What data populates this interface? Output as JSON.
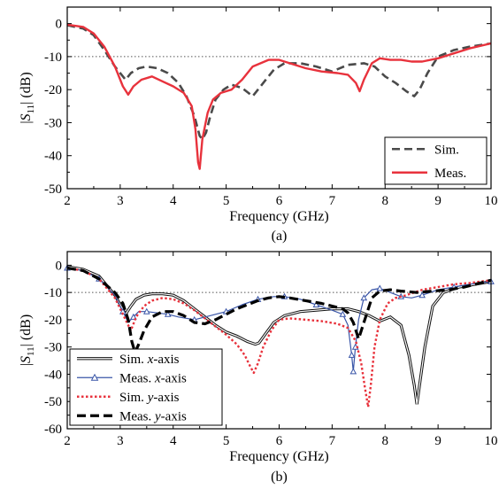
{
  "chart_data": [
    {
      "type": "line",
      "caption": "(a)",
      "xlabel": "Frequency (GHz)",
      "ylabel_parts": [
        "|",
        "S",
        "11",
        "| (dB)"
      ],
      "xlim": [
        2,
        10
      ],
      "ylim": [
        -50,
        5
      ],
      "xticks": [
        2,
        3,
        4,
        5,
        6,
        7,
        8,
        9,
        10
      ],
      "yticks": [
        0,
        -10,
        -20,
        -30,
        -40,
        -50
      ],
      "ytick_labels": [
        "0",
        "-10",
        "-20",
        "-30",
        "-40",
        "-50"
      ],
      "reference_line_y": -10,
      "legend_position": "bottom-right",
      "series": [
        {
          "name": "Sim.",
          "color": "#4a4a4a",
          "style": "dashed",
          "x": [
            2.0,
            2.3,
            2.5,
            2.7,
            2.9,
            3.1,
            3.2,
            3.35,
            3.5,
            3.7,
            3.9,
            4.1,
            4.25,
            4.4,
            4.5,
            4.55,
            4.62,
            4.7,
            4.8,
            4.95,
            5.1,
            5.3,
            5.5,
            5.7,
            5.9,
            6.1,
            6.4,
            6.7,
            7.0,
            7.3,
            7.6,
            7.8,
            8.0,
            8.2,
            8.4,
            8.55,
            8.65,
            8.8,
            9.0,
            9.3,
            9.6,
            10.0
          ],
          "y": [
            -0.5,
            -1.5,
            -3.5,
            -8,
            -13,
            -17,
            -15,
            -13.5,
            -13,
            -13.5,
            -15,
            -18,
            -22,
            -28,
            -34,
            -35,
            -33,
            -28,
            -23,
            -20,
            -18.5,
            -19.5,
            -22,
            -18,
            -14,
            -12,
            -12,
            -13,
            -14.5,
            -12.5,
            -12,
            -13,
            -16,
            -18,
            -20.5,
            -22,
            -20,
            -15,
            -10,
            -8,
            -7,
            -6
          ]
        },
        {
          "name": "Meas.",
          "color": "#e8323c",
          "style": "solid",
          "x": [
            2.0,
            2.3,
            2.5,
            2.7,
            2.9,
            3.05,
            3.15,
            3.25,
            3.4,
            3.6,
            3.8,
            4.0,
            4.2,
            4.35,
            4.42,
            4.47,
            4.5,
            4.55,
            4.65,
            4.75,
            4.9,
            5.1,
            5.3,
            5.5,
            5.8,
            6.0,
            6.2,
            6.5,
            6.8,
            7.1,
            7.3,
            7.45,
            7.52,
            7.6,
            7.75,
            7.9,
            8.1,
            8.3,
            8.5,
            8.7,
            9.0,
            9.3,
            9.6,
            10.0
          ],
          "y": [
            -0.3,
            -1,
            -3,
            -7,
            -13,
            -19,
            -21.5,
            -19,
            -17,
            -16,
            -17.5,
            -19,
            -21,
            -25,
            -32,
            -42,
            -44,
            -35,
            -27,
            -23,
            -21,
            -20,
            -17,
            -13,
            -11,
            -11,
            -12,
            -13.5,
            -14.5,
            -15,
            -15.5,
            -18,
            -20.5,
            -17,
            -12,
            -10.5,
            -11,
            -11,
            -11.5,
            -11.5,
            -10.5,
            -9,
            -7.5,
            -6
          ]
        }
      ]
    },
    {
      "type": "line",
      "caption": "(b)",
      "xlabel": "Frequency (GHz)",
      "ylabel_parts": [
        "|",
        "S",
        "11",
        "| (dB)"
      ],
      "xlim": [
        2,
        10
      ],
      "ylim": [
        -60,
        5
      ],
      "xticks": [
        2,
        3,
        4,
        5,
        6,
        7,
        8,
        9,
        10
      ],
      "yticks": [
        0,
        -10,
        -20,
        -30,
        -40,
        -50,
        -60
      ],
      "ytick_labels": [
        "0",
        "-10",
        "-20",
        "-30",
        "-40",
        "-50",
        "-60"
      ],
      "reference_line_y": -10,
      "legend_position": "bottom-left",
      "series": [
        {
          "name_parts": [
            "Sim. ",
            "x",
            "-axis"
          ],
          "color": "#111111",
          "style": "double",
          "x": [
            2.0,
            2.3,
            2.6,
            2.9,
            3.1,
            3.2,
            3.3,
            3.45,
            3.6,
            3.8,
            4.0,
            4.2,
            4.4,
            4.6,
            4.8,
            5.0,
            5.2,
            5.4,
            5.55,
            5.62,
            5.75,
            5.9,
            6.1,
            6.4,
            6.7,
            7.0,
            7.3,
            7.5,
            7.7,
            7.9,
            8.1,
            8.3,
            8.45,
            8.55,
            8.6,
            8.65,
            8.75,
            8.9,
            9.1,
            9.4,
            9.7,
            10.0
          ],
          "y": [
            -0.5,
            -1.5,
            -4,
            -11,
            -18,
            -15,
            -12.5,
            -11,
            -10.5,
            -10.5,
            -11,
            -13,
            -16,
            -19,
            -22,
            -24.5,
            -26,
            -28,
            -29,
            -28.5,
            -25,
            -21,
            -18.5,
            -17,
            -16.5,
            -16,
            -16,
            -17,
            -18.5,
            -20.5,
            -19,
            -22,
            -33,
            -44,
            -51,
            -44,
            -30,
            -15,
            -10,
            -8,
            -7,
            -6
          ]
        },
        {
          "name_parts": [
            "Meas. ",
            "x",
            "-axis"
          ],
          "color": "#3a56a8",
          "style": "triangles",
          "marker_x": [
            7.4
          ],
          "x": [
            2.0,
            2.3,
            2.6,
            2.9,
            3.05,
            3.15,
            3.25,
            3.35,
            3.5,
            3.7,
            3.9,
            4.1,
            4.4,
            4.7,
            5.0,
            5.3,
            5.6,
            5.9,
            6.1,
            6.4,
            6.7,
            7.0,
            7.2,
            7.3,
            7.37,
            7.4,
            7.44,
            7.5,
            7.6,
            7.75,
            7.9,
            8.1,
            8.3,
            8.5,
            8.7,
            9.0,
            9.3,
            9.6,
            10.0
          ],
          "y": [
            -1,
            -2,
            -5,
            -11,
            -17,
            -21,
            -19,
            -17,
            -17,
            -17.5,
            -18,
            -19,
            -20,
            -18.5,
            -17,
            -14.5,
            -12.5,
            -11.5,
            -11.5,
            -12.5,
            -14.5,
            -16.5,
            -18,
            -22,
            -33,
            -39,
            -30,
            -20,
            -12,
            -9,
            -8.5,
            -10,
            -11.5,
            -12,
            -11,
            -9,
            -8,
            -7,
            -6
          ]
        },
        {
          "name_parts": [
            "Sim. ",
            "y",
            "-axis"
          ],
          "color": "#e8323c",
          "style": "dotted",
          "x": [
            2.0,
            2.3,
            2.6,
            2.9,
            3.1,
            3.2,
            3.3,
            3.45,
            3.6,
            3.8,
            4.0,
            4.2,
            4.4,
            4.6,
            4.8,
            5.0,
            5.2,
            5.35,
            5.45,
            5.52,
            5.6,
            5.7,
            5.85,
            6.0,
            6.2,
            6.5,
            6.8,
            7.1,
            7.3,
            7.45,
            7.55,
            7.62,
            7.68,
            7.73,
            7.8,
            7.9,
            8.05,
            8.2,
            8.4,
            8.7,
            9.0,
            9.3,
            9.6,
            10.0
          ],
          "y": [
            -1,
            -2,
            -5,
            -12,
            -20,
            -24,
            -19,
            -15,
            -13,
            -12,
            -12.5,
            -14,
            -16.5,
            -19.5,
            -22.5,
            -25.5,
            -29,
            -33,
            -37,
            -39.5,
            -36,
            -30,
            -24,
            -20,
            -19.5,
            -20,
            -20.5,
            -21.5,
            -23,
            -28,
            -36,
            -45,
            -52,
            -44,
            -30,
            -20,
            -14,
            -12,
            -11,
            -9,
            -8,
            -7,
            -6.5,
            -5.5
          ]
        },
        {
          "name_parts": [
            "Meas. ",
            "y",
            "-axis"
          ],
          "color": "#000000",
          "style": "dashed-bold",
          "x": [
            2.0,
            2.3,
            2.6,
            2.9,
            3.05,
            3.15,
            3.22,
            3.28,
            3.35,
            3.45,
            3.6,
            3.8,
            4.0,
            4.2,
            4.4,
            4.6,
            4.8,
            5.0,
            5.2,
            5.4,
            5.6,
            5.8,
            6.0,
            6.2,
            6.5,
            6.8,
            7.0,
            7.2,
            7.3,
            7.4,
            7.5,
            7.6,
            7.75,
            7.9,
            8.1,
            8.3,
            8.6,
            8.9,
            9.2,
            9.5,
            9.8,
            10.0
          ],
          "y": [
            -1,
            -2,
            -5,
            -10,
            -14,
            -20,
            -28,
            -32,
            -29,
            -24,
            -19,
            -17,
            -17,
            -18.5,
            -21,
            -21.5,
            -20,
            -18,
            -16,
            -14.5,
            -13,
            -12,
            -11.5,
            -12,
            -13,
            -14,
            -15,
            -16,
            -17.5,
            -21,
            -27,
            -21,
            -12,
            -9.5,
            -9,
            -9.5,
            -10,
            -9.5,
            -9,
            -8,
            -6.5,
            -5.5
          ]
        }
      ]
    }
  ]
}
